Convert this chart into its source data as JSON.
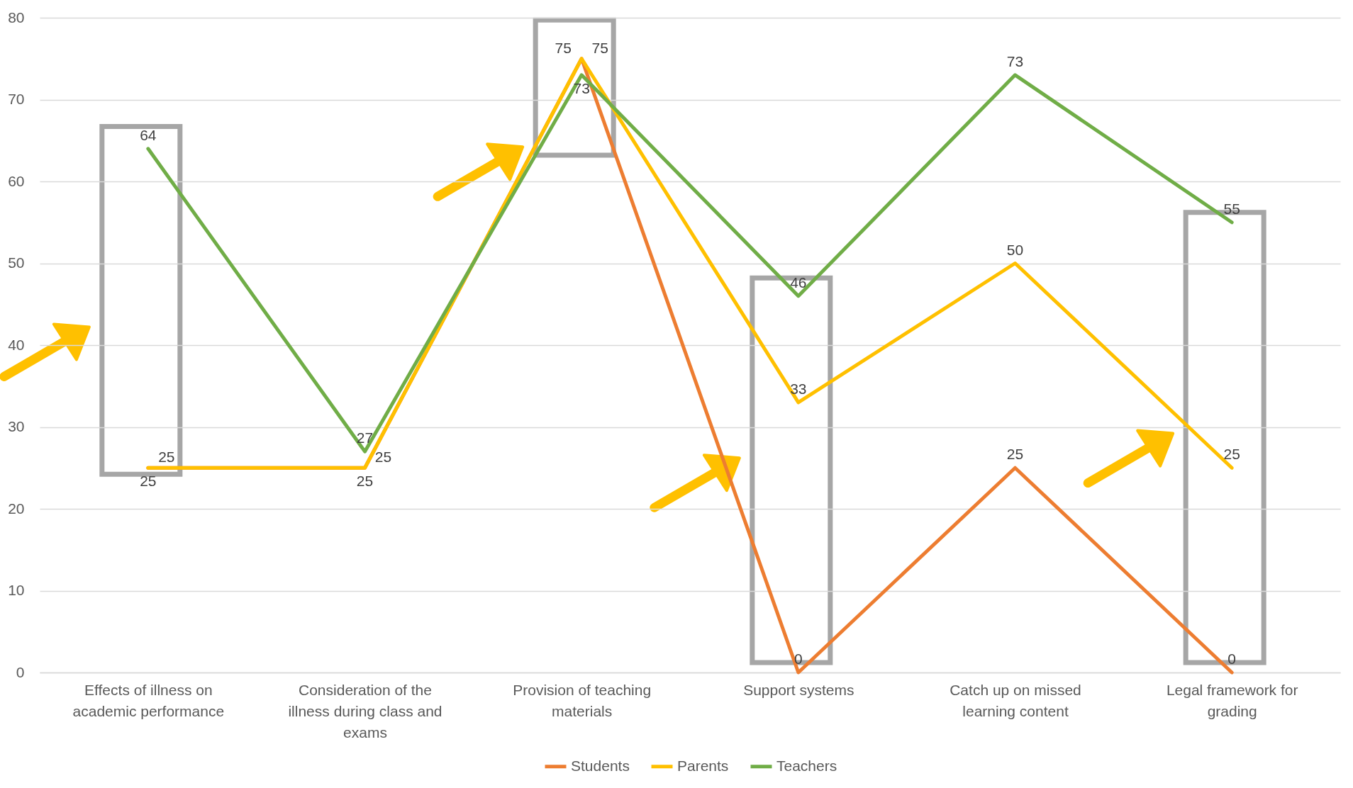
{
  "chart_data": {
    "type": "line",
    "categories": [
      "Effects of illness on academic performance",
      "Consideration of the illness during class and exams",
      "Provision of teaching materials",
      "Support systems",
      "Catch up on missed learning content",
      "Legal framework for grading"
    ],
    "series": [
      {
        "name": "Students",
        "color": "#ed7d31",
        "values": [
          25,
          25,
          75,
          0,
          25,
          0
        ]
      },
      {
        "name": "Parents",
        "color": "#ffc000",
        "values": [
          25,
          25,
          75,
          33,
          50,
          25
        ]
      },
      {
        "name": "Teachers",
        "color": "#70ad47",
        "values": [
          64,
          27,
          73,
          46,
          73,
          55
        ]
      }
    ],
    "ylim": [
      0,
      80
    ],
    "yticks": [
      0,
      10,
      20,
      30,
      40,
      50,
      60,
      70,
      80
    ],
    "grid": "y",
    "legend": "bottom",
    "data_labels": true
  }
}
